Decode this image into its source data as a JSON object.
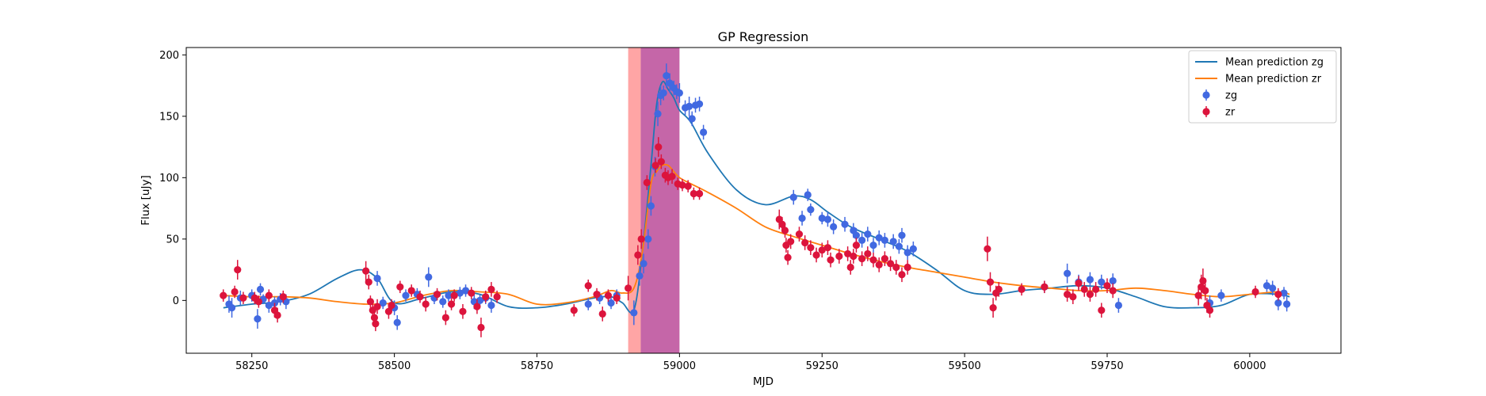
{
  "chart_data": {
    "type": "scatter",
    "title": "GP Regression",
    "xlabel": "MJD",
    "ylabel": "Flux [uJy]",
    "xlim": [
      58135,
      60160
    ],
    "ylim": [
      -43,
      206
    ],
    "xticks": [
      58250,
      58500,
      58750,
      59000,
      59250,
      59500,
      59750,
      60000
    ],
    "yticks": [
      0,
      50,
      100,
      150,
      200
    ],
    "grid": false,
    "legend_position": "top-right",
    "shaded_regions": [
      {
        "x0": 58910,
        "x1": 58932,
        "color": "#ffa5a5"
      },
      {
        "x0": 58932,
        "x1": 59000,
        "color": "#c566a8"
      }
    ],
    "lines": [
      {
        "name": "Mean prediction zg",
        "color": "#1f77b4",
        "x": [
          58200,
          58250,
          58300,
          58350,
          58400,
          58440,
          58470,
          58500,
          58550,
          58600,
          58650,
          58700,
          58750,
          58800,
          58850,
          58880,
          58900,
          58920,
          58935,
          58950,
          58960,
          58970,
          58980,
          58990,
          59000,
          59020,
          59050,
          59100,
          59150,
          59200,
          59230,
          59260,
          59300,
          59350,
          59400,
          59450,
          59500,
          59550,
          59600,
          59650,
          59700,
          59750,
          59800,
          59850,
          59900,
          59950,
          60000,
          60050,
          60070
        ],
        "y": [
          -6,
          -3,
          -1,
          5,
          18,
          25,
          18,
          -2,
          2,
          7,
          5,
          -5,
          -6,
          -3,
          2,
          3,
          -2,
          -8,
          40,
          110,
          160,
          178,
          172,
          165,
          155,
          145,
          120,
          90,
          78,
          85,
          82,
          72,
          60,
          50,
          40,
          25,
          8,
          5,
          8,
          10,
          12,
          10,
          3,
          -5,
          -6,
          -4,
          5,
          5,
          3
        ]
      },
      {
        "name": "Mean prediction zr",
        "color": "#ff7f0e",
        "x": [
          58200,
          58250,
          58300,
          58350,
          58400,
          58450,
          58500,
          58550,
          58600,
          58650,
          58700,
          58750,
          58800,
          58850,
          58880,
          58900,
          58920,
          58935,
          58950,
          58960,
          58970,
          58980,
          58990,
          59000,
          59020,
          59050,
          59100,
          59150,
          59200,
          59250,
          59300,
          59350,
          59400,
          59450,
          59500,
          59550,
          59600,
          59650,
          59700,
          59750,
          59800,
          59850,
          59900,
          59950,
          60000,
          60050,
          60070
        ],
        "y": [
          4,
          3,
          3,
          2,
          -1,
          -3,
          -2,
          4,
          8,
          7,
          5,
          -3,
          -2,
          3,
          8,
          6,
          10,
          40,
          95,
          105,
          110,
          110,
          105,
          100,
          95,
          88,
          75,
          60,
          52,
          45,
          38,
          32,
          27,
          23,
          19,
          15,
          12,
          10,
          8,
          8,
          10,
          8,
          5,
          3,
          5,
          7,
          5
        ]
      }
    ],
    "series": [
      {
        "name": "zg",
        "color": "#4169e1",
        "points": [
          [
            58210,
            -3,
            7
          ],
          [
            58215,
            -6,
            8
          ],
          [
            58230,
            2,
            6
          ],
          [
            58250,
            4,
            5
          ],
          [
            58260,
            -15,
            8
          ],
          [
            58265,
            9,
            5
          ],
          [
            58270,
            1,
            4
          ],
          [
            58280,
            -4,
            6
          ],
          [
            58290,
            -2,
            5
          ],
          [
            58300,
            1,
            5
          ],
          [
            58310,
            -1,
            6
          ],
          [
            58470,
            18,
            6
          ],
          [
            58480,
            -2,
            5
          ],
          [
            58500,
            -6,
            6
          ],
          [
            58505,
            -18,
            6
          ],
          [
            58520,
            4,
            5
          ],
          [
            58540,
            5,
            5
          ],
          [
            58560,
            19,
            8
          ],
          [
            58570,
            2,
            5
          ],
          [
            58585,
            -1,
            5
          ],
          [
            58595,
            4,
            5
          ],
          [
            58615,
            6,
            5
          ],
          [
            58625,
            8,
            5
          ],
          [
            58640,
            -1,
            6
          ],
          [
            58650,
            0,
            5
          ],
          [
            58660,
            2,
            5
          ],
          [
            58670,
            -4,
            6
          ],
          [
            58840,
            -3,
            5
          ],
          [
            58860,
            2,
            5
          ],
          [
            58880,
            -2,
            5
          ],
          [
            58890,
            4,
            5
          ],
          [
            58920,
            -10,
            10
          ],
          [
            58930,
            20,
            8
          ],
          [
            58937,
            30,
            8
          ],
          [
            58945,
            50,
            8
          ],
          [
            58950,
            77,
            8
          ],
          [
            58957,
            109,
            8
          ],
          [
            58962,
            152,
            10
          ],
          [
            58967,
            167,
            8
          ],
          [
            58972,
            169,
            6
          ],
          [
            58977,
            183,
            10
          ],
          [
            58983,
            177,
            8
          ],
          [
            58990,
            173,
            6
          ],
          [
            58995,
            170,
            6
          ],
          [
            59000,
            169,
            8
          ],
          [
            59010,
            157,
            6
          ],
          [
            59017,
            158,
            8
          ],
          [
            59022,
            148,
            6
          ],
          [
            59028,
            159,
            6
          ],
          [
            59035,
            160,
            6
          ],
          [
            59042,
            137,
            6
          ],
          [
            59200,
            84,
            6
          ],
          [
            59215,
            67,
            6
          ],
          [
            59225,
            86,
            5
          ],
          [
            59230,
            74,
            5
          ],
          [
            59250,
            67,
            5
          ],
          [
            59260,
            66,
            6
          ],
          [
            59270,
            60,
            6
          ],
          [
            59290,
            62,
            6
          ],
          [
            59305,
            57,
            6
          ],
          [
            59310,
            53,
            6
          ],
          [
            59320,
            49,
            6
          ],
          [
            59330,
            54,
            6
          ],
          [
            59340,
            45,
            6
          ],
          [
            59350,
            51,
            6
          ],
          [
            59360,
            49,
            6
          ],
          [
            59375,
            48,
            6
          ],
          [
            59385,
            44,
            6
          ],
          [
            59390,
            53,
            6
          ],
          [
            59400,
            39,
            6
          ],
          [
            59410,
            42,
            6
          ],
          [
            59640,
            11,
            5
          ],
          [
            59680,
            22,
            8
          ],
          [
            59700,
            15,
            6
          ],
          [
            59720,
            17,
            6
          ],
          [
            59740,
            15,
            6
          ],
          [
            59760,
            16,
            6
          ],
          [
            59770,
            -4,
            6
          ],
          [
            59930,
            -2,
            6
          ],
          [
            59950,
            4,
            5
          ],
          [
            60030,
            12,
            5
          ],
          [
            60040,
            10,
            6
          ],
          [
            60050,
            -2,
            6
          ],
          [
            60060,
            6,
            5
          ],
          [
            60065,
            -3,
            6
          ]
        ]
      },
      {
        "name": "zr",
        "color": "#dc143c",
        "points": [
          [
            58200,
            4,
            5
          ],
          [
            58220,
            7,
            5
          ],
          [
            58225,
            25,
            8
          ],
          [
            58235,
            2,
            5
          ],
          [
            58255,
            2,
            5
          ],
          [
            58262,
            -1,
            5
          ],
          [
            58280,
            4,
            5
          ],
          [
            58290,
            -8,
            6
          ],
          [
            58295,
            -12,
            6
          ],
          [
            58305,
            3,
            5
          ],
          [
            58450,
            24,
            8
          ],
          [
            58455,
            15,
            6
          ],
          [
            58458,
            -1,
            5
          ],
          [
            58462,
            -8,
            6
          ],
          [
            58465,
            -14,
            6
          ],
          [
            58467,
            -19,
            6
          ],
          [
            58470,
            -5,
            6
          ],
          [
            58490,
            -9,
            6
          ],
          [
            58495,
            -4,
            5
          ],
          [
            58510,
            11,
            5
          ],
          [
            58530,
            8,
            5
          ],
          [
            58545,
            3,
            5
          ],
          [
            58555,
            -3,
            6
          ],
          [
            58575,
            5,
            5
          ],
          [
            58590,
            -14,
            6
          ],
          [
            58600,
            -3,
            5
          ],
          [
            58605,
            4,
            5
          ],
          [
            58620,
            -9,
            6
          ],
          [
            58635,
            6,
            5
          ],
          [
            58645,
            -5,
            6
          ],
          [
            58652,
            -22,
            8
          ],
          [
            58660,
            3,
            5
          ],
          [
            58670,
            9,
            6
          ],
          [
            58680,
            3,
            5
          ],
          [
            58815,
            -8,
            5
          ],
          [
            58840,
            12,
            5
          ],
          [
            58855,
            5,
            5
          ],
          [
            58865,
            -11,
            6
          ],
          [
            58875,
            4,
            5
          ],
          [
            58890,
            2,
            5
          ],
          [
            58910,
            10,
            10
          ],
          [
            58927,
            37,
            8
          ],
          [
            58933,
            50,
            8
          ],
          [
            58943,
            96,
            6
          ],
          [
            58958,
            110,
            6
          ],
          [
            58963,
            125,
            8
          ],
          [
            58968,
            113,
            6
          ],
          [
            58975,
            102,
            6
          ],
          [
            58980,
            100,
            6
          ],
          [
            58987,
            101,
            6
          ],
          [
            58997,
            95,
            5
          ],
          [
            59005,
            94,
            5
          ],
          [
            59015,
            93,
            5
          ],
          [
            59025,
            87,
            5
          ],
          [
            59035,
            87,
            5
          ],
          [
            59175,
            66,
            8
          ],
          [
            59180,
            62,
            6
          ],
          [
            59185,
            57,
            6
          ],
          [
            59187,
            45,
            6
          ],
          [
            59190,
            35,
            6
          ],
          [
            59195,
            48,
            6
          ],
          [
            59210,
            54,
            6
          ],
          [
            59220,
            47,
            6
          ],
          [
            59230,
            43,
            6
          ],
          [
            59240,
            37,
            6
          ],
          [
            59250,
            41,
            6
          ],
          [
            59260,
            43,
            6
          ],
          [
            59265,
            33,
            6
          ],
          [
            59280,
            36,
            6
          ],
          [
            59295,
            38,
            6
          ],
          [
            59300,
            27,
            6
          ],
          [
            59305,
            36,
            6
          ],
          [
            59310,
            45,
            6
          ],
          [
            59320,
            34,
            6
          ],
          [
            59330,
            38,
            6
          ],
          [
            59340,
            33,
            6
          ],
          [
            59350,
            29,
            6
          ],
          [
            59360,
            34,
            6
          ],
          [
            59370,
            30,
            6
          ],
          [
            59380,
            27,
            6
          ],
          [
            59390,
            21,
            6
          ],
          [
            59400,
            27,
            6
          ],
          [
            59540,
            42,
            10
          ],
          [
            59545,
            15,
            8
          ],
          [
            59550,
            -6,
            8
          ],
          [
            59555,
            6,
            6
          ],
          [
            59560,
            9,
            6
          ],
          [
            59600,
            9,
            5
          ],
          [
            59640,
            11,
            5
          ],
          [
            59680,
            5,
            6
          ],
          [
            59690,
            3,
            6
          ],
          [
            59700,
            14,
            6
          ],
          [
            59710,
            9,
            6
          ],
          [
            59720,
            5,
            6
          ],
          [
            59730,
            9,
            6
          ],
          [
            59740,
            -8,
            6
          ],
          [
            59750,
            12,
            6
          ],
          [
            59760,
            8,
            6
          ],
          [
            59910,
            4,
            8
          ],
          [
            59915,
            11,
            10
          ],
          [
            59918,
            16,
            10
          ],
          [
            59922,
            8,
            8
          ],
          [
            59925,
            -4,
            6
          ],
          [
            59930,
            -8,
            6
          ],
          [
            60010,
            7,
            5
          ],
          [
            60050,
            5,
            5
          ]
        ]
      }
    ],
    "legend": [
      {
        "label": "Mean prediction zg",
        "kind": "line",
        "color": "#1f77b4"
      },
      {
        "label": "Mean prediction zr",
        "kind": "line",
        "color": "#ff7f0e"
      },
      {
        "label": "zg",
        "kind": "marker",
        "color": "#4169e1"
      },
      {
        "label": "zr",
        "kind": "marker",
        "color": "#dc143c"
      }
    ]
  }
}
